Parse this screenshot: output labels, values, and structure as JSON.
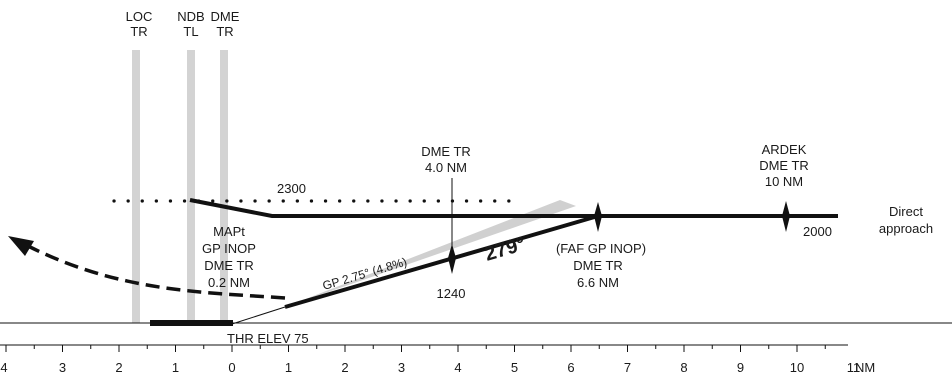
{
  "fixes": {
    "loc": [
      "LOC",
      "TR"
    ],
    "ndb": [
      "NDB",
      "TL"
    ],
    "dme": [
      "DME",
      "TR"
    ]
  },
  "altitudes": {
    "upper": "2300",
    "platform": "2000",
    "gp_check": "1240"
  },
  "dme_4nm": [
    "DME TR",
    "4.0 NM"
  ],
  "ardek": [
    "ARDEK",
    "DME TR",
    "10 NM"
  ],
  "direct_approach": [
    "Direct",
    "approach"
  ],
  "mapt": [
    "MAPt",
    "GP INOP",
    "DME TR",
    "0.2 NM"
  ],
  "faf": [
    "(FAF GP INOP)",
    "DME TR",
    "6.6 NM"
  ],
  "glidepath": "GP 2.75° (4.8%)",
  "course": "279°",
  "threshold": "THR ELEV 75",
  "axis": {
    "ticks": [
      "4",
      "3",
      "2",
      "1",
      "0",
      "1",
      "2",
      "3",
      "4",
      "5",
      "6",
      "7",
      "8",
      "9",
      "10",
      "11"
    ],
    "unit": "NM"
  }
}
